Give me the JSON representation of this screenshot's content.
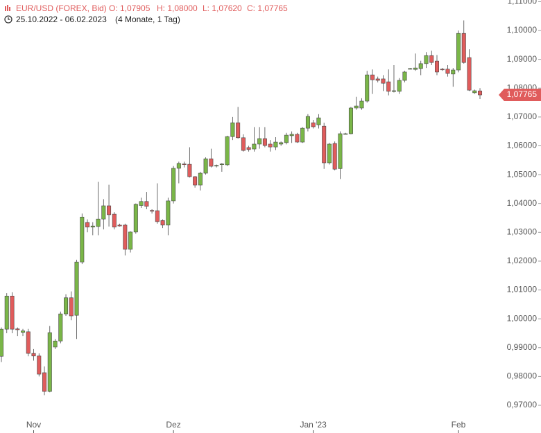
{
  "chart_data": {
    "type": "candlestick",
    "title": "EUR/USD (FOREX, Bid)",
    "ohlc_labels": [
      "O: 1,07905",
      "H: 1,08000",
      "L: 1,07620",
      "C: 1,07765"
    ],
    "date_range": "25.10.2022 - 06.02.2023",
    "period": "(4 Monate, 1 Tag)",
    "up_color": "#7ab648",
    "down_color": "#e05c5c",
    "last_label": {
      "value": 1.07765,
      "label": "1,07765"
    },
    "ylim": [
      0.965,
      1.11
    ],
    "yticks": [
      {
        "value": 0.97,
        "label": "0,97000"
      },
      {
        "value": 0.98,
        "label": "0,98000"
      },
      {
        "value": 0.99,
        "label": "0,99000"
      },
      {
        "value": 1.0,
        "label": "1,00000"
      },
      {
        "value": 1.01,
        "label": "1,01000"
      },
      {
        "value": 1.02,
        "label": "1,02000"
      },
      {
        "value": 1.03,
        "label": "1,03000"
      },
      {
        "value": 1.04,
        "label": "1,04000"
      },
      {
        "value": 1.05,
        "label": "1,05000"
      },
      {
        "value": 1.06,
        "label": "1,06000"
      },
      {
        "value": 1.07,
        "label": "1,07000"
      },
      {
        "value": 1.08,
        "label": "1,08000"
      },
      {
        "value": 1.09,
        "label": "1,09000"
      },
      {
        "value": 1.1,
        "label": "1,10000"
      },
      {
        "value": 1.11,
        "label": "1,11000"
      }
    ],
    "categories": [
      null,
      null,
      null,
      null,
      null,
      null,
      "Nov",
      null,
      null,
      null,
      null,
      null,
      null,
      null,
      null,
      null,
      null,
      null,
      null,
      null,
      null,
      null,
      null,
      null,
      null,
      null,
      null,
      null,
      null,
      null,
      null,
      null,
      "Dez",
      null,
      null,
      null,
      null,
      null,
      null,
      null,
      null,
      null,
      null,
      null,
      null,
      null,
      null,
      null,
      null,
      null,
      null,
      null,
      null,
      null,
      null,
      null,
      null,
      null,
      "Jan '23",
      null,
      null,
      null,
      null,
      null,
      null,
      null,
      null,
      null,
      null,
      null,
      null,
      null,
      null,
      null,
      null,
      null,
      null,
      null,
      null,
      null,
      null,
      null,
      null,
      null,
      null,
      "Feb",
      null,
      null,
      null,
      null
    ],
    "open": [
      0.987,
      0.9964,
      1.0079,
      0.9965,
      0.9953,
      0.9955,
      0.988,
      0.9871,
      0.9813,
      0.9748,
      0.9902,
      0.9923,
      1.0017,
      1.0073,
      1.0012,
      1.0197,
      1.0334,
      1.0318,
      1.032,
      1.0346,
      1.0392,
      1.0363,
      1.0325,
      1.0325,
      1.0241,
      1.0301,
      1.0393,
      1.0407,
      1.0376,
      1.0375,
      1.0341,
      1.0325,
      1.0409,
      1.0522,
      1.0537,
      1.0536,
      1.0493,
      1.0464,
      1.0505,
      1.0555,
      1.053,
      1.0535,
      1.0534,
      1.0632,
      1.068,
      1.0628,
      1.0594,
      1.0589,
      1.0606,
      1.0625,
      1.0606,
      1.0596,
      1.0606,
      1.0611,
      1.0635,
      1.064,
      1.0613,
      1.0661,
      1.068,
      1.0673,
      1.0668,
      1.0541,
      1.0608,
      1.0521,
      1.0642,
      1.0642,
      1.0731,
      1.0731,
      1.0755,
      1.0846,
      1.0832,
      1.0832,
      1.0822,
      1.079,
      1.0789,
      1.0827,
      1.0867,
      1.0865,
      1.0868,
      1.0885,
      1.0913,
      1.0894,
      1.0866,
      1.0866,
      1.0849,
      1.0863,
      1.099,
      1.0906,
      1.0784,
      1.07905
    ],
    "high": [
      0.997,
      1.0089,
      1.0092,
      0.997,
      0.9965,
      0.9965,
      0.9895,
      0.988,
      0.9835,
      0.9975,
      0.993,
      1.0025,
      1.0085,
      1.0095,
      1.0205,
      1.0365,
      1.0345,
      1.0335,
      1.0475,
      1.0415,
      1.0465,
      1.037,
      1.033,
      1.033,
      1.0303,
      1.04,
      1.042,
      1.044,
      1.038,
      1.047,
      1.0345,
      1.042,
      1.053,
      1.0545,
      1.0545,
      1.0595,
      1.0495,
      1.051,
      1.056,
      1.059,
      1.0535,
      1.054,
      1.0635,
      1.07,
      1.0735,
      1.064,
      1.06,
      1.0665,
      1.0665,
      1.0665,
      1.062,
      1.063,
      1.0615,
      1.0645,
      1.065,
      1.0645,
      1.0665,
      1.071,
      1.069,
      1.071,
      1.068,
      1.061,
      1.0615,
      1.065,
      1.0645,
      1.0735,
      1.077,
      1.0765,
      1.086,
      1.0865,
      1.084,
      1.0845,
      1.0865,
      1.088,
      1.0835,
      1.086,
      1.087,
      1.092,
      1.0895,
      1.0925,
      1.093,
      1.0915,
      1.087,
      1.088,
      1.087,
      1.1,
      1.1035,
      1.0935,
      1.0795,
      1.08
    ],
    "low": [
      0.985,
      0.995,
      0.995,
      0.994,
      0.994,
      0.987,
      0.9855,
      0.98,
      0.9735,
      0.9745,
      0.9895,
      0.9915,
      1.001,
      0.9995,
      0.993,
      1.019,
      1.03,
      1.029,
      1.029,
      1.031,
      1.032,
      1.031,
      1.032,
      1.022,
      1.023,
      1.0295,
      1.0385,
      1.038,
      1.0365,
      1.033,
      1.0315,
      1.029,
      1.04,
      1.047,
      1.0525,
      1.049,
      1.0455,
      1.0445,
      1.05,
      1.0525,
      1.0525,
      1.051,
      1.053,
      1.062,
      1.0625,
      1.058,
      1.058,
      1.058,
      1.059,
      1.0595,
      1.058,
      1.0585,
      1.06,
      1.0605,
      1.061,
      1.061,
      1.061,
      1.065,
      1.066,
      1.066,
      1.052,
      1.0535,
      1.0515,
      1.0485,
      1.064,
      1.064,
      1.0725,
      1.0725,
      1.075,
      1.078,
      1.082,
      1.079,
      1.0775,
      1.0785,
      1.078,
      1.082,
      1.0865,
      1.086,
      1.0845,
      1.087,
      1.088,
      1.0845,
      1.086,
      1.084,
      1.0805,
      1.0855,
      1.0885,
      1.079,
      1.078,
      1.0762
    ],
    "close": [
      0.9964,
      1.0079,
      0.9964,
      0.9962,
      0.9958,
      0.988,
      0.9871,
      0.9808,
      0.9748,
      0.9952,
      0.9923,
      1.0017,
      1.0073,
      1.001,
      1.0197,
      1.0353,
      1.0318,
      1.0322,
      1.0346,
      1.0392,
      1.0361,
      1.0318,
      1.0322,
      1.0241,
      1.0301,
      1.0397,
      1.0407,
      1.039,
      1.0373,
      1.0337,
      1.0325,
      1.0409,
      1.0522,
      1.0539,
      1.0535,
      1.0493,
      1.0464,
      1.0505,
      1.0555,
      1.0529,
      1.0532,
      1.0537,
      1.0632,
      1.068,
      1.0628,
      1.0584,
      1.0587,
      1.0606,
      1.0625,
      1.0601,
      1.0596,
      1.0613,
      1.0611,
      1.0637,
      1.064,
      1.0613,
      1.0661,
      1.0702,
      1.0666,
      1.0697,
      1.0541,
      1.0606,
      1.0519,
      1.0642,
      1.0642,
      1.0731,
      1.0738,
      1.0755,
      1.0846,
      1.0829,
      1.0827,
      1.0817,
      1.0789,
      1.0791,
      1.0827,
      1.0856,
      1.0868,
      1.087,
      1.0885,
      1.0913,
      1.0889,
      1.0856,
      1.0865,
      1.0851,
      1.0863,
      1.099,
      1.0889,
      1.0793,
      1.0791,
      1.07765
    ]
  }
}
